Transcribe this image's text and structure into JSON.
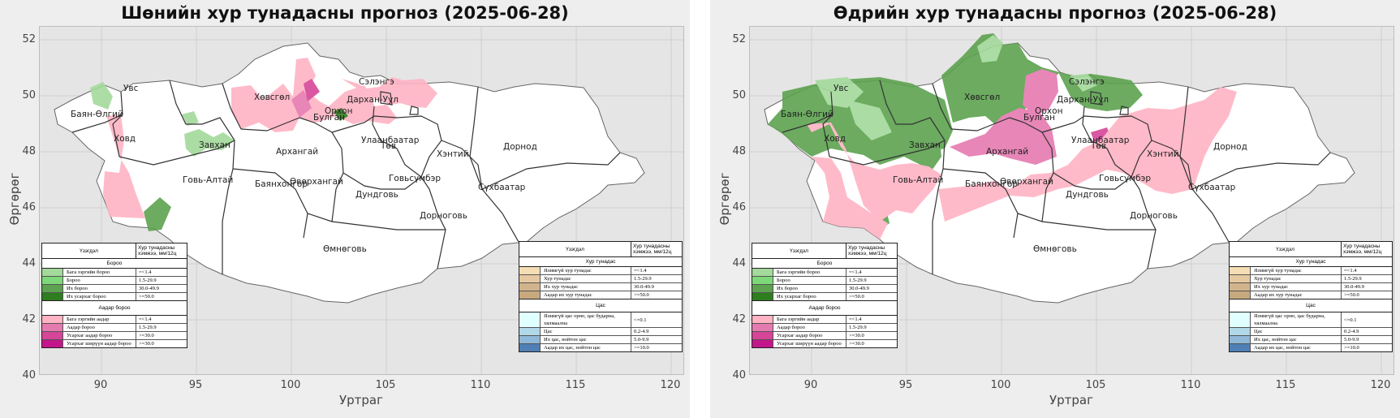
{
  "colors": {
    "panel_bg": "#eeeeee",
    "plot_bg": "#e5e5e5",
    "rain_light": "#a3d99b",
    "rain": "#7dd87a",
    "rain_heavy": "#5da24f",
    "rain_very_heavy": "#2e7d1f",
    "storm_light": "#ffb3c4",
    "storm": "#e57ab0",
    "storm_heavy": "#d64598",
    "storm_very_heavy": "#c2168a",
    "mixed_slight": "#f5deb3",
    "mixed": "#e6c9a0",
    "mixed_heavy": "#d2b48c",
    "mixed_very_heavy": "#c8a97e",
    "snow_slight": "#e0ffff",
    "snow": "#b0d8e8",
    "snow_heavy": "#8fb8d8",
    "snow_very_heavy": "#4f7fb5"
  },
  "axes": {
    "xlabel": "Уртраг",
    "ylabel": "Өргөрөг",
    "xticks": [
      "90",
      "95",
      "100",
      "105",
      "110",
      "115",
      "120"
    ],
    "yticks": [
      "52",
      "50",
      "48",
      "46",
      "44",
      "42",
      "40"
    ],
    "xlim": [
      87,
      121
    ],
    "ylim": [
      40,
      52.6
    ]
  },
  "panels": [
    {
      "title": "Шөнийн хур тунадасны прогноз (2025-06-28)",
      "provinces": [
        "Увс",
        "Баян-Өлгий",
        "Ховд",
        "Завхан",
        "Говь-Алтай",
        "Хөвсгөл",
        "Архангай",
        "Булган",
        "Орхон",
        "Сэлэнгэ",
        "Дархан-Уул",
        "Улаанбаатар",
        "Төв",
        "Баянхонгор",
        "Өвөрхангай",
        "Дундговь",
        "Говьсүмбэр",
        "Хэнтий",
        "Дорнод",
        "Сүхбаатар",
        "Дорноговь",
        "Өмнөговь"
      ]
    },
    {
      "title": "Өдрийн хур тунадасны прогноз (2025-06-28)",
      "provinces": [
        "Увс",
        "Баян-Өлгий",
        "Ховд",
        "Завхан",
        "Говь-Алтай",
        "Хөвсгөл",
        "Архангай",
        "Булган",
        "Орхон",
        "Сэлэнгэ",
        "Дархан-Уул",
        "Улаанбаатар",
        "Төв",
        "Баянхонгор",
        "Өвөрхангай",
        "Дундговь",
        "Говьсүмбэр",
        "Хэнтий",
        "Дорнод",
        "Сүхбаатар",
        "Дорноговь",
        "Өмнөговь"
      ]
    }
  ],
  "legend_left": {
    "head_phenomenon": "Үзэгдэл",
    "head_amount": "Хур тунадасны хэмжээ, мм/12ц",
    "rain_title": "Бороо",
    "rain_items": [
      {
        "label": "Бага зэргийн бороо",
        "range": "=<1.4",
        "color": "#a3d99b"
      },
      {
        "label": "Бороо",
        "range": "1.5-29.9",
        "color": "#7dd87a"
      },
      {
        "label": "Их бороо",
        "range": "30.0-49.9",
        "color": "#5da24f"
      },
      {
        "label": "Их усархаг бороо",
        "range": ">=50.0",
        "color": "#2e7d1f"
      }
    ],
    "storm_title": "Аадар бороо",
    "storm_items": [
      {
        "label": "Бага зэргийн аадар",
        "range": "=<1.4",
        "color": "#ffb3c4"
      },
      {
        "label": "Аадар бороо",
        "range": "1.5-29.9",
        "color": "#e57ab0"
      },
      {
        "label": "Усархаг аадар бороо",
        "range": ">=30.0",
        "color": "#d64598"
      },
      {
        "label": "Усархаг ширүүн аадар бороо",
        "range": ">=30.0",
        "color": "#c2168a"
      }
    ]
  },
  "legend_right": {
    "head_phenomenon": "Үзэгдэл",
    "head_amount": "Хур тунадасны хэмжээ, мм/12ц",
    "mixed_title": "Хур тунадас",
    "mixed_items": [
      {
        "label": "Ялимгүй хур тунадас",
        "range": "=<1.4",
        "color": "#f5deb3"
      },
      {
        "label": "Хур тунадас",
        "range": "1.5-29.9",
        "color": "#e6c9a0"
      },
      {
        "label": "Их хур тунадас",
        "range": "30.0-49.9",
        "color": "#d2b48c"
      },
      {
        "label": "Аадар их хур тунадас",
        "range": ">=50.0",
        "color": "#c8a97e"
      }
    ],
    "snow_title": "Цас",
    "snow_items": [
      {
        "label": "Ялимгүй цас орно, цас бударна, хялмаална",
        "range": "<=0.1",
        "color": "#e0ffff"
      },
      {
        "label": "Цас",
        "range": "0.2-4.9",
        "color": "#b0d8e8"
      },
      {
        "label": "Их цас, нойтон цас",
        "range": "5.0-9.9",
        "color": "#8fb8d8"
      },
      {
        "label": "Аадар их цас, нойтон цас",
        "range": ">=10.0",
        "color": "#4f7fb5"
      }
    ]
  }
}
